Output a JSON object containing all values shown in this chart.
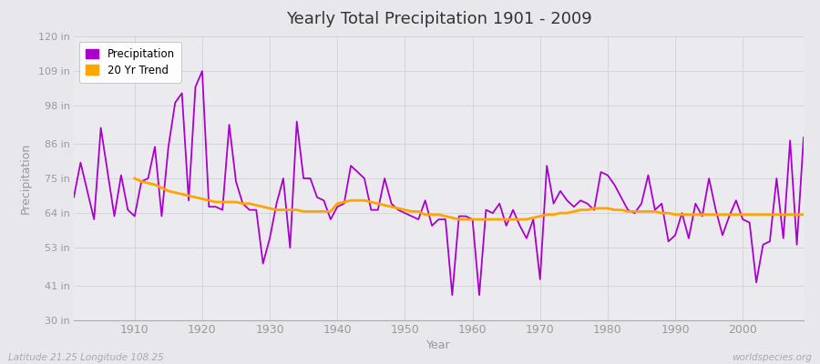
{
  "title": "Yearly Total Precipitation 1901 - 2009",
  "xlabel": "Year",
  "ylabel": "Precipitation",
  "lat_lon_label": "Latitude 21.25 Longitude 108.25",
  "watermark": "worldspecies.org",
  "years": [
    1901,
    1902,
    1903,
    1904,
    1905,
    1906,
    1907,
    1908,
    1909,
    1910,
    1911,
    1912,
    1913,
    1914,
    1915,
    1916,
    1917,
    1918,
    1919,
    1920,
    1921,
    1922,
    1923,
    1924,
    1925,
    1926,
    1927,
    1928,
    1929,
    1930,
    1931,
    1932,
    1933,
    1934,
    1935,
    1936,
    1937,
    1938,
    1939,
    1940,
    1941,
    1942,
    1943,
    1944,
    1945,
    1946,
    1947,
    1948,
    1949,
    1950,
    1951,
    1952,
    1953,
    1954,
    1955,
    1956,
    1957,
    1958,
    1959,
    1960,
    1961,
    1962,
    1963,
    1964,
    1965,
    1966,
    1967,
    1968,
    1969,
    1970,
    1971,
    1972,
    1973,
    1974,
    1975,
    1976,
    1977,
    1978,
    1979,
    1980,
    1981,
    1982,
    1983,
    1984,
    1985,
    1986,
    1987,
    1988,
    1989,
    1990,
    1991,
    1992,
    1993,
    1994,
    1995,
    1996,
    1997,
    1998,
    1999,
    2000,
    2001,
    2002,
    2003,
    2004,
    2005,
    2006,
    2007,
    2008,
    2009
  ],
  "precip_in": [
    69,
    80,
    71,
    62,
    91,
    77,
    63,
    76,
    65,
    63,
    74,
    75,
    85,
    63,
    85,
    99,
    102,
    68,
    104,
    109,
    66,
    66,
    65,
    92,
    74,
    67,
    65,
    65,
    48,
    56,
    67,
    75,
    53,
    93,
    75,
    75,
    69,
    68,
    62,
    66,
    67,
    79,
    77,
    75,
    65,
    65,
    75,
    67,
    65,
    64,
    63,
    62,
    68,
    60,
    62,
    62,
    38,
    63,
    63,
    62,
    38,
    65,
    64,
    67,
    60,
    65,
    60,
    56,
    62,
    43,
    79,
    67,
    71,
    68,
    66,
    68,
    67,
    65,
    77,
    76,
    73,
    69,
    65,
    64,
    67,
    76,
    65,
    67,
    55,
    57,
    64,
    56,
    67,
    63,
    75,
    65,
    57,
    63,
    68,
    62,
    61,
    42,
    54,
    55,
    75,
    56,
    87,
    54,
    88
  ],
  "trend_years": [
    1910,
    1911,
    1912,
    1913,
    1914,
    1915,
    1916,
    1917,
    1918,
    1919,
    1920,
    1921,
    1922,
    1923,
    1924,
    1925,
    1926,
    1927,
    1928,
    1929,
    1930,
    1931,
    1932,
    1933,
    1934,
    1935,
    1936,
    1937,
    1938,
    1939,
    1940,
    1941,
    1942,
    1943,
    1944,
    1945,
    1946,
    1947,
    1948,
    1949,
    1950,
    1951,
    1952,
    1953,
    1954,
    1955,
    1956,
    1957,
    1958,
    1959,
    1960,
    1961,
    1962,
    1963,
    1964,
    1965,
    1966,
    1967,
    1968,
    1969,
    1970,
    1971,
    1972,
    1973,
    1974,
    1975,
    1976,
    1977,
    1978,
    1979,
    1980,
    1981,
    1982,
    1983,
    1984,
    1985,
    1986,
    1987,
    1988,
    1989,
    1990,
    1991,
    1992,
    1993,
    1994,
    1995,
    1996,
    1997,
    1998,
    1999,
    2000,
    2001,
    2002,
    2003,
    2004,
    2005,
    2006,
    2007,
    2008,
    2009
  ],
  "trend_values_in": [
    75.0,
    74.0,
    73.5,
    73.0,
    72.0,
    71.0,
    70.5,
    70.0,
    69.5,
    69.0,
    68.5,
    68.0,
    67.5,
    67.5,
    67.5,
    67.5,
    67.0,
    67.0,
    66.5,
    66.0,
    65.5,
    65.0,
    65.0,
    65.0,
    65.0,
    64.5,
    64.5,
    64.5,
    64.5,
    64.5,
    67.0,
    67.5,
    68.0,
    68.0,
    68.0,
    67.5,
    67.0,
    66.5,
    66.0,
    65.5,
    65.0,
    64.5,
    64.5,
    63.5,
    63.5,
    63.5,
    63.0,
    62.5,
    62.0,
    62.0,
    62.0,
    62.0,
    62.0,
    62.0,
    62.0,
    62.0,
    62.0,
    62.0,
    62.0,
    62.5,
    63.0,
    63.5,
    63.5,
    64.0,
    64.0,
    64.5,
    65.0,
    65.0,
    65.5,
    65.5,
    65.5,
    65.0,
    65.0,
    64.5,
    64.5,
    64.5,
    64.5,
    64.5,
    64.0,
    64.0,
    63.5,
    63.5,
    63.5,
    63.5,
    63.5,
    63.5,
    63.5,
    63.5,
    63.5,
    63.5,
    63.5,
    63.5,
    63.5,
    63.5,
    63.5,
    63.5,
    63.5,
    63.5,
    63.5,
    63.5
  ],
  "precip_color": "#AA00CC",
  "trend_color": "#FFA500",
  "bg_color": "#E8E8EC",
  "plot_bg_color": "#EBEBEF",
  "grid_color": "#D0D0D8",
  "yticks": [
    30,
    41,
    53,
    64,
    75,
    86,
    98,
    109,
    120
  ],
  "ytick_labels": [
    "30 in",
    "41 in",
    "53 in",
    "64 in",
    "75 in",
    "86 in",
    "98 in",
    "109 in",
    "120 in"
  ],
  "xticks": [
    1910,
    1920,
    1930,
    1940,
    1950,
    1960,
    1970,
    1980,
    1990,
    2000
  ],
  "ylim": [
    30,
    120
  ],
  "xlim": [
    1901,
    2009
  ]
}
